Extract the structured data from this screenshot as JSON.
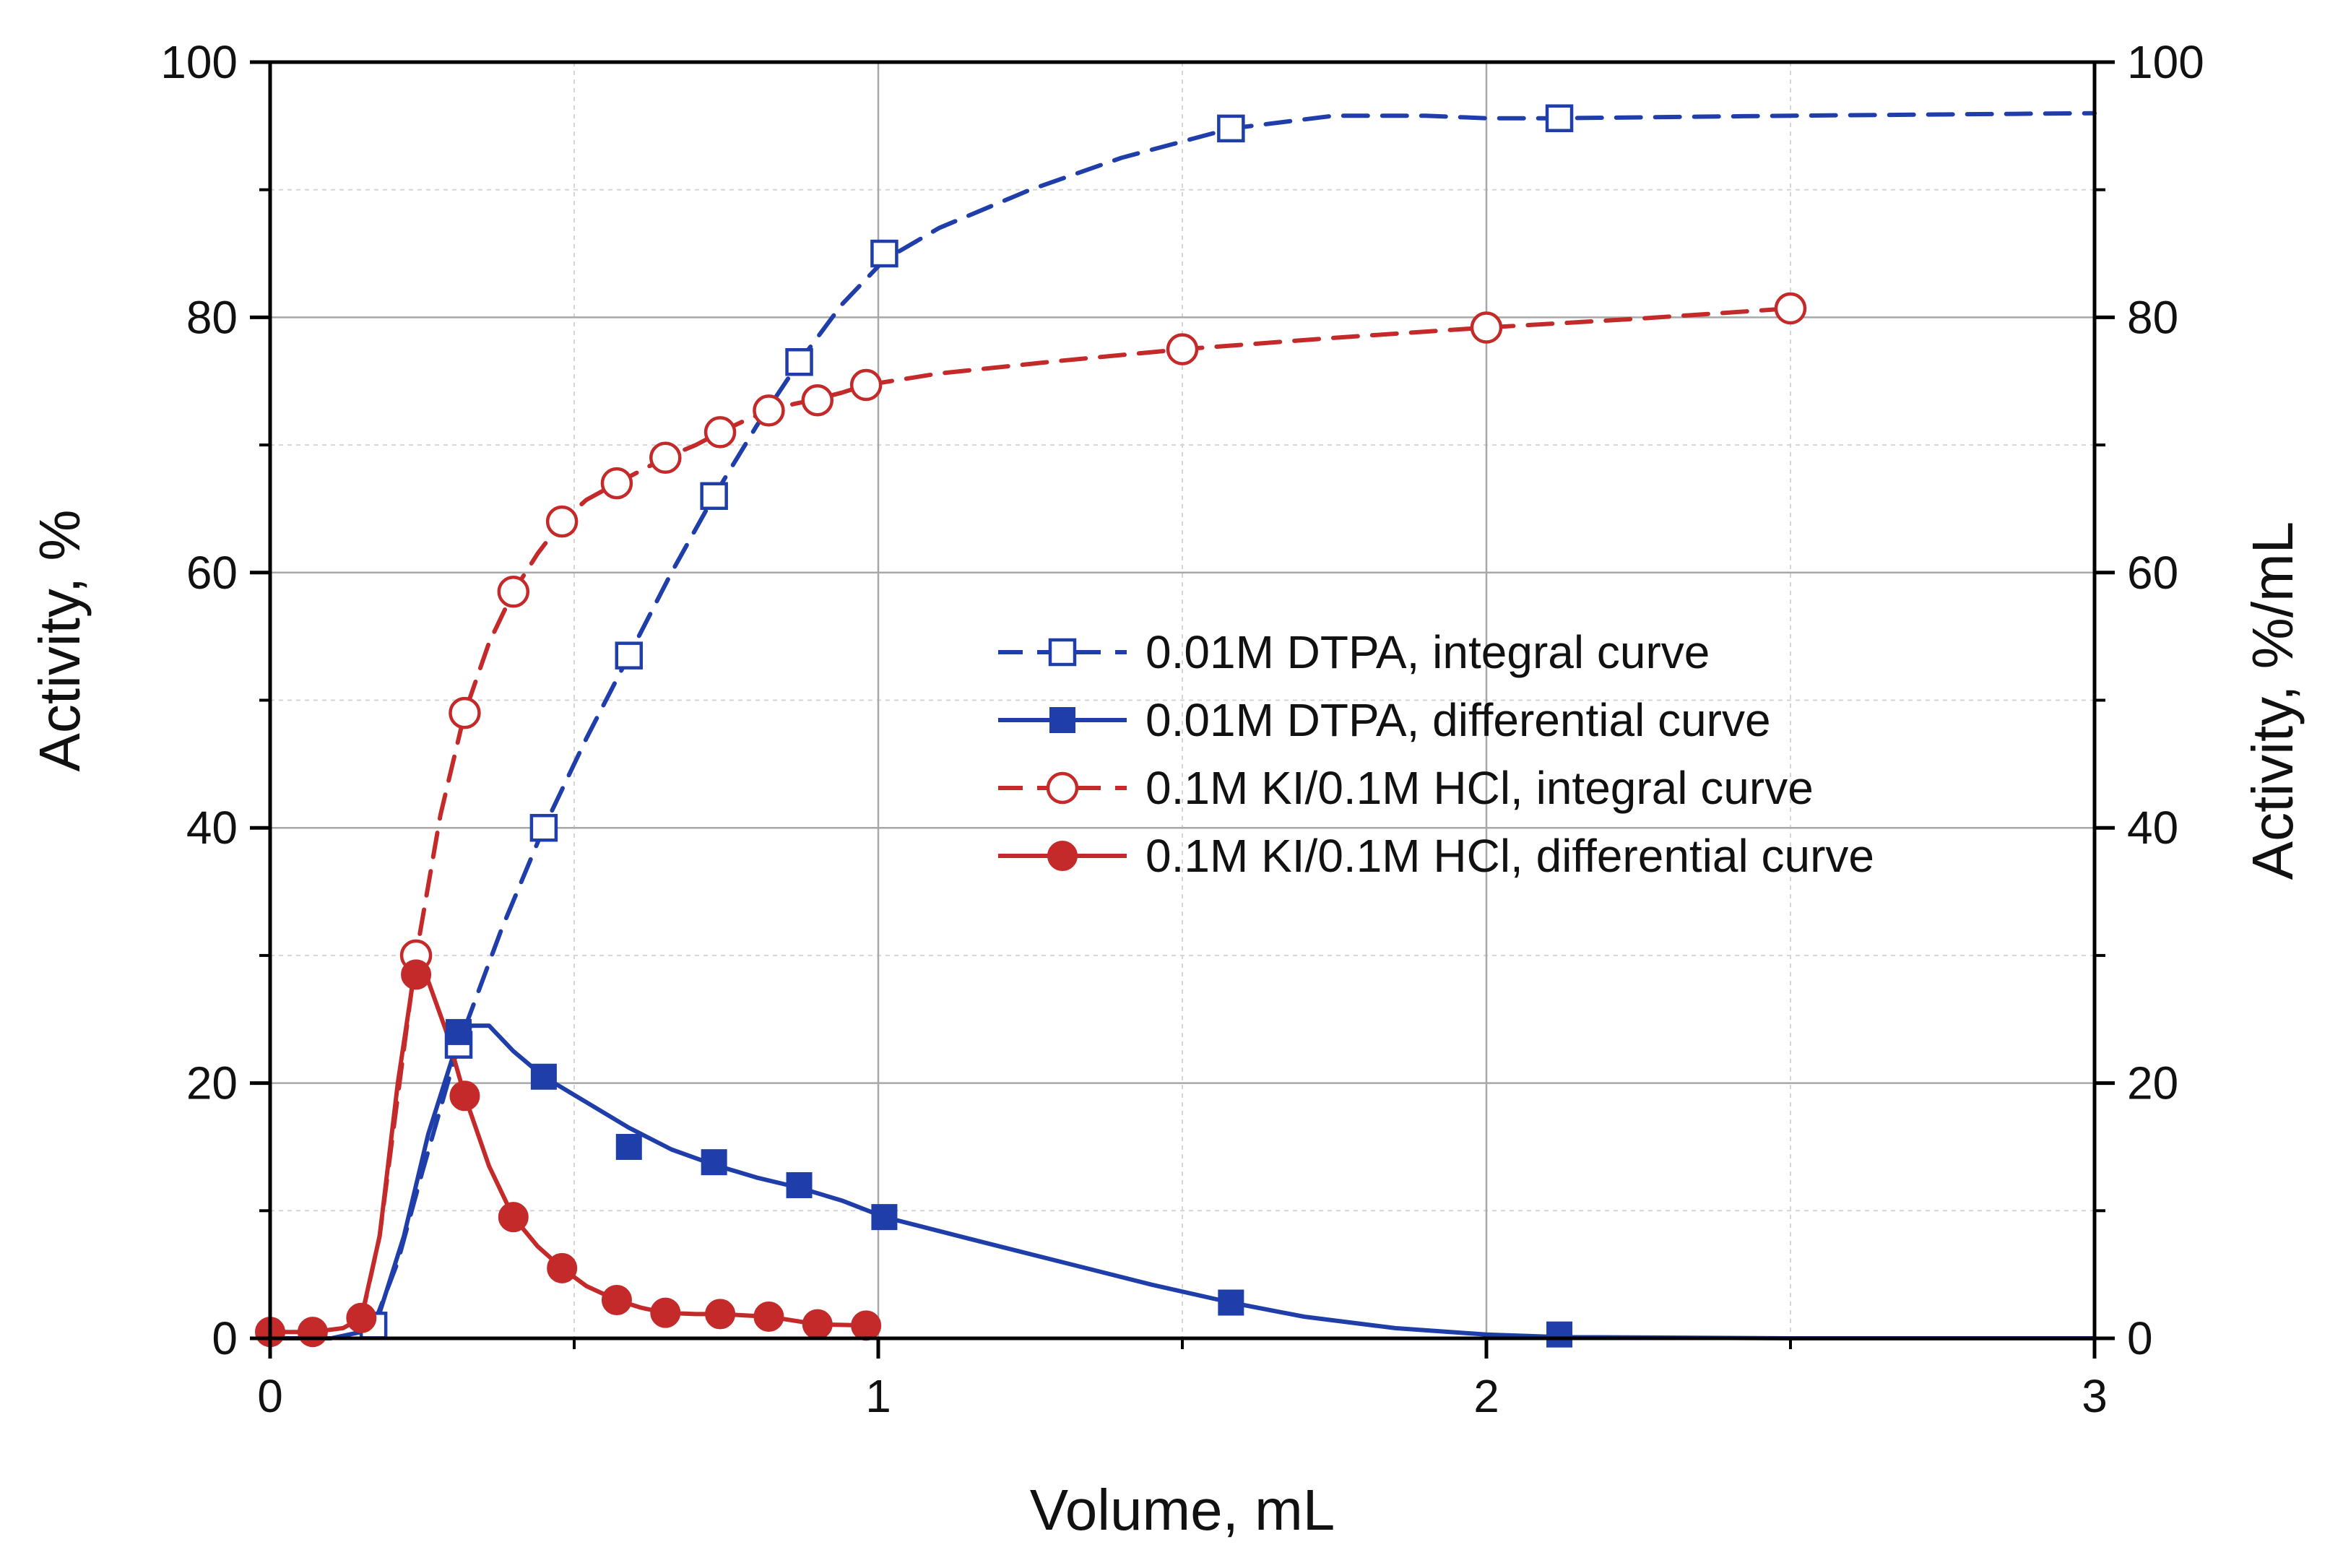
{
  "chart_data": {
    "type": "line",
    "title": "",
    "xlabel": "Volume, mL",
    "ylabel": "Activity, %",
    "ylabel_right": "Activity, %/mL",
    "xlim": [
      0,
      3
    ],
    "ylim": [
      0,
      100
    ],
    "ylim_right": [
      0,
      100
    ],
    "x_ticks": [
      "0",
      "1",
      "2",
      "3"
    ],
    "y_ticks": [
      "0",
      "20",
      "40",
      "60",
      "80",
      "100"
    ],
    "y_ticks_right": [
      "0",
      "20",
      "40",
      "60",
      "80",
      "100"
    ],
    "grid": true,
    "legend_position": "center-right",
    "series": [
      {
        "name": "0.01M DTPA, integral curve",
        "color": "#1f3eaa",
        "line": "dashed",
        "marker": "open-square",
        "points": [
          [
            0.17,
            1
          ],
          [
            0.31,
            23
          ],
          [
            0.45,
            40
          ],
          [
            0.59,
            53.5
          ],
          [
            0.73,
            66
          ],
          [
            0.87,
            76.5
          ],
          [
            1.01,
            85
          ],
          [
            1.58,
            94.8
          ],
          [
            2.12,
            95.6
          ]
        ],
        "curve": [
          [
            0.17,
            1
          ],
          [
            0.21,
            6
          ],
          [
            0.25,
            13
          ],
          [
            0.31,
            23
          ],
          [
            0.38,
            32
          ],
          [
            0.45,
            40
          ],
          [
            0.52,
            47
          ],
          [
            0.59,
            53.5
          ],
          [
            0.66,
            60
          ],
          [
            0.73,
            66
          ],
          [
            0.8,
            71.5
          ],
          [
            0.87,
            76.5
          ],
          [
            0.94,
            81
          ],
          [
            1.01,
            84.5
          ],
          [
            1.1,
            87
          ],
          [
            1.25,
            90
          ],
          [
            1.4,
            92.5
          ],
          [
            1.58,
            94.8
          ],
          [
            1.75,
            95.8
          ],
          [
            1.9,
            95.8
          ],
          [
            2.0,
            95.6
          ],
          [
            2.12,
            95.6
          ],
          [
            2.5,
            95.8
          ],
          [
            3.0,
            96
          ]
        ]
      },
      {
        "name": "0.01M DTPA, differential curve",
        "color": "#1f3eaa",
        "line": "solid",
        "marker": "filled-square",
        "points": [
          [
            0.31,
            24
          ],
          [
            0.45,
            20.5
          ],
          [
            0.59,
            15
          ],
          [
            0.73,
            13.8
          ],
          [
            0.87,
            12
          ],
          [
            1.01,
            9.5
          ],
          [
            1.58,
            2.8
          ],
          [
            2.12,
            0.3
          ]
        ],
        "curve": [
          [
            0,
            0
          ],
          [
            0.1,
            0
          ],
          [
            0.15,
            0.5
          ],
          [
            0.18,
            2
          ],
          [
            0.22,
            8
          ],
          [
            0.26,
            16
          ],
          [
            0.3,
            22
          ],
          [
            0.33,
            24.5
          ],
          [
            0.36,
            24.5
          ],
          [
            0.4,
            22.5
          ],
          [
            0.45,
            20.5
          ],
          [
            0.52,
            18.5
          ],
          [
            0.59,
            16.5
          ],
          [
            0.66,
            14.8
          ],
          [
            0.73,
            13.6
          ],
          [
            0.8,
            12.6
          ],
          [
            0.87,
            11.8
          ],
          [
            0.94,
            10.8
          ],
          [
            1.01,
            9.5
          ],
          [
            1.15,
            7.8
          ],
          [
            1.3,
            6.0
          ],
          [
            1.45,
            4.2
          ],
          [
            1.58,
            2.8
          ],
          [
            1.7,
            1.7
          ],
          [
            1.85,
            0.8
          ],
          [
            2.0,
            0.3
          ],
          [
            2.12,
            0.1
          ],
          [
            2.5,
            0
          ],
          [
            3.0,
            0
          ]
        ]
      },
      {
        "name": "0.1M KI/0.1M HCl, integral curve",
        "color": "#c42a2a",
        "line": "dashed",
        "marker": "open-circle",
        "points": [
          [
            0.24,
            30
          ],
          [
            0.32,
            49
          ],
          [
            0.4,
            58.5
          ],
          [
            0.48,
            64
          ],
          [
            0.57,
            67
          ],
          [
            0.65,
            69
          ],
          [
            0.74,
            71
          ],
          [
            0.82,
            72.7
          ],
          [
            0.9,
            73.5
          ],
          [
            0.98,
            74.7
          ],
          [
            1.5,
            77.5
          ],
          [
            2.0,
            79.2
          ],
          [
            2.5,
            80.7
          ]
        ],
        "curve": [
          [
            0.15,
            1.5
          ],
          [
            0.18,
            8
          ],
          [
            0.21,
            19
          ],
          [
            0.24,
            30
          ],
          [
            0.28,
            41
          ],
          [
            0.32,
            49
          ],
          [
            0.36,
            54.5
          ],
          [
            0.4,
            58.5
          ],
          [
            0.44,
            61.5
          ],
          [
            0.48,
            64
          ],
          [
            0.52,
            65.7
          ],
          [
            0.57,
            67
          ],
          [
            0.61,
            68
          ],
          [
            0.65,
            69
          ],
          [
            0.7,
            70
          ],
          [
            0.74,
            71
          ],
          [
            0.78,
            71.9
          ],
          [
            0.82,
            72.7
          ],
          [
            0.86,
            73.2
          ],
          [
            0.9,
            73.6
          ],
          [
            0.94,
            74.1
          ],
          [
            0.98,
            74.7
          ],
          [
            1.1,
            75.6
          ],
          [
            1.3,
            76.6
          ],
          [
            1.5,
            77.5
          ],
          [
            1.75,
            78.4
          ],
          [
            2.0,
            79.2
          ],
          [
            2.25,
            79.9
          ],
          [
            2.5,
            80.7
          ]
        ]
      },
      {
        "name": "0.1M KI/0.1M HCl, differential curve",
        "color": "#c42a2a",
        "line": "solid",
        "marker": "filled-circle",
        "points": [
          [
            0,
            0.5
          ],
          [
            0.07,
            0.5
          ],
          [
            0.15,
            1.6
          ],
          [
            0.24,
            28.5
          ],
          [
            0.32,
            19
          ],
          [
            0.4,
            9.5
          ],
          [
            0.48,
            5.5
          ],
          [
            0.57,
            3
          ],
          [
            0.65,
            2
          ],
          [
            0.74,
            1.9
          ],
          [
            0.82,
            1.7
          ],
          [
            0.9,
            1.1
          ],
          [
            0.98,
            1
          ]
        ],
        "curve": [
          [
            0,
            0.5
          ],
          [
            0.07,
            0.5
          ],
          [
            0.12,
            0.8
          ],
          [
            0.15,
            1.6
          ],
          [
            0.18,
            8
          ],
          [
            0.21,
            20
          ],
          [
            0.235,
            28
          ],
          [
            0.26,
            28
          ],
          [
            0.29,
            24
          ],
          [
            0.32,
            19
          ],
          [
            0.36,
            13.5
          ],
          [
            0.4,
            9.5
          ],
          [
            0.44,
            7.2
          ],
          [
            0.48,
            5.5
          ],
          [
            0.52,
            4.1
          ],
          [
            0.57,
            3
          ],
          [
            0.61,
            2.4
          ],
          [
            0.65,
            2
          ],
          [
            0.7,
            1.9
          ],
          [
            0.74,
            1.9
          ],
          [
            0.78,
            1.8
          ],
          [
            0.82,
            1.7
          ],
          [
            0.86,
            1.4
          ],
          [
            0.9,
            1.1
          ],
          [
            0.94,
            1.05
          ],
          [
            0.98,
            1
          ]
        ]
      }
    ]
  }
}
